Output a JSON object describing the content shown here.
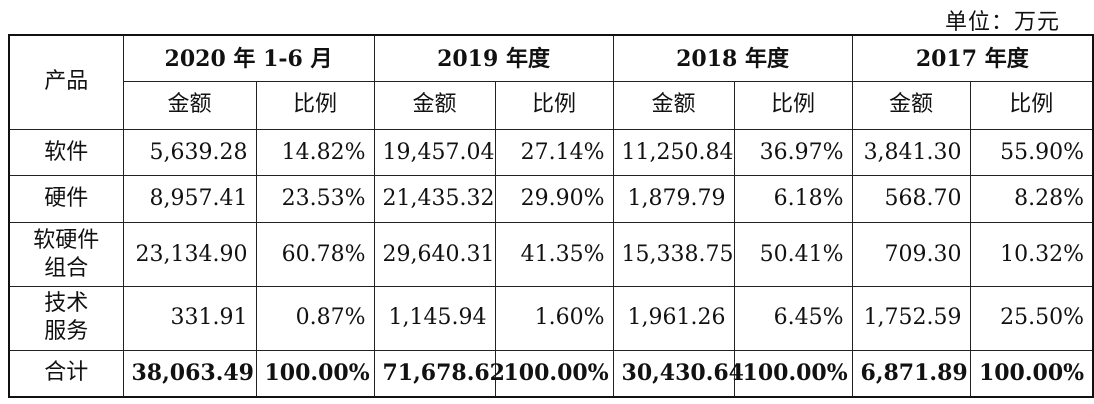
{
  "unit_label": "单位：万元",
  "headers": {
    "product": "产品",
    "periods": [
      "2020 年 1-6 月",
      "2019 年度",
      "2018 年度",
      "2017 年度"
    ],
    "amount": "金额",
    "ratio": "比例"
  },
  "rows": [
    {
      "product": [
        "软件"
      ],
      "values": [
        "5,639.28",
        "14.82%",
        "19,457.04",
        "27.14%",
        "11,250.84",
        "36.97%",
        "3,841.30",
        "55.90%"
      ]
    },
    {
      "product": [
        "硬件"
      ],
      "values": [
        "8,957.41",
        "23.53%",
        "21,435.32",
        "29.90%",
        "1,879.79",
        "6.18%",
        "568.70",
        "8.28%"
      ]
    },
    {
      "product": [
        "软硬件",
        "组合"
      ],
      "values": [
        "23,134.90",
        "60.78%",
        "29,640.31",
        "41.35%",
        "15,338.75",
        "50.41%",
        "709.30",
        "10.32%"
      ]
    },
    {
      "product": [
        "技术",
        "服务"
      ],
      "values": [
        "331.91",
        "0.87%",
        "1,145.94",
        "1.60%",
        "1,961.26",
        "6.45%",
        "1,752.59",
        "25.50%"
      ]
    }
  ],
  "total": {
    "product": "合计",
    "values": [
      "38,063.49",
      "100.00%",
      "71,678.62",
      "100.00%",
      "30,430.64",
      "100.00%",
      "6,871.89",
      "100.00%"
    ]
  }
}
